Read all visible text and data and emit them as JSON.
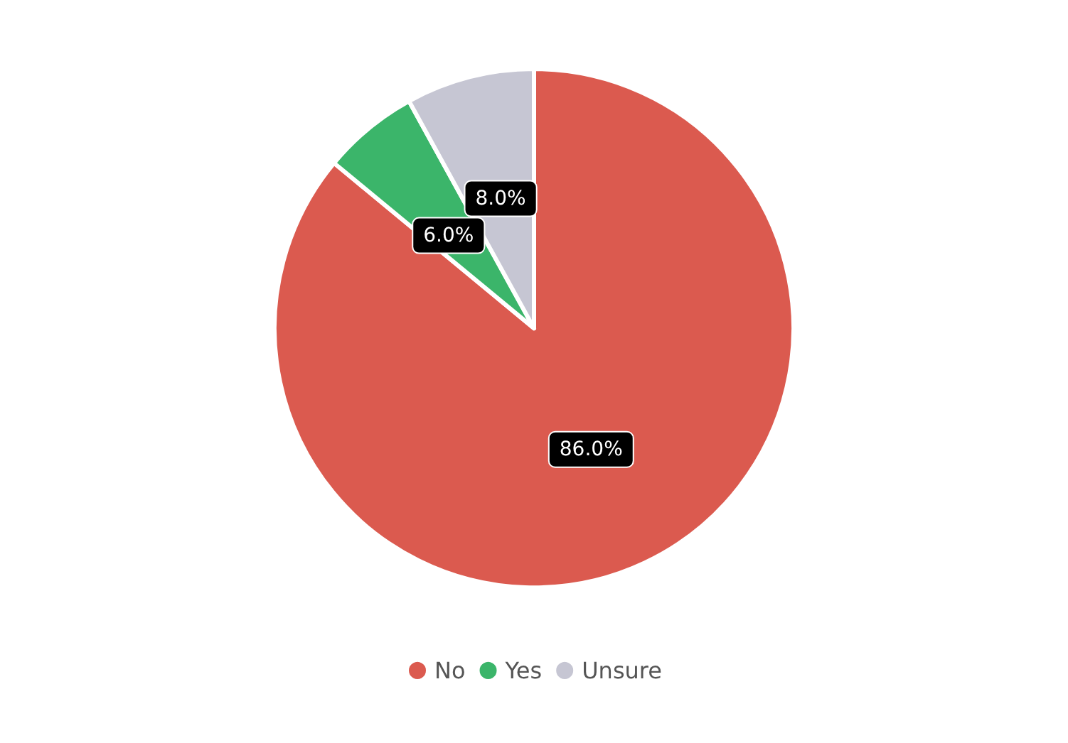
{
  "chart_data": {
    "type": "pie",
    "categories": [
      "No",
      "Yes",
      "Unsure"
    ],
    "values": [
      86,
      6,
      8
    ],
    "colors": [
      "#db5a4f",
      "#3bb56a",
      "#c6c6d3"
    ],
    "value_labels": [
      "86.0%",
      "6.0%",
      "8.0%"
    ],
    "legend": "bottom"
  }
}
